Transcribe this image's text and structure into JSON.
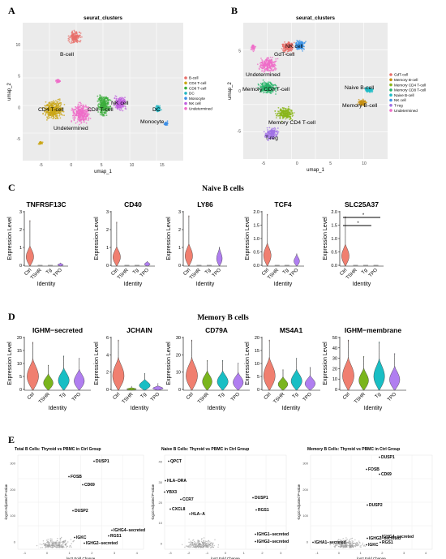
{
  "panels": {
    "a": "A",
    "b": "B",
    "c": "C",
    "d": "D",
    "e": "E"
  },
  "umap_a": {
    "title": "seurat_clusters",
    "xlabel": "umap_1",
    "ylabel": "umap_2",
    "xticks": [
      "-5",
      "0",
      "5",
      "10",
      "15"
    ],
    "yticks": [
      "10",
      "5",
      "0",
      "-5"
    ],
    "legend": [
      {
        "name": "B-cell",
        "color": "#e86f6a"
      },
      {
        "name": "CD4 T-cell",
        "color": "#c9a614"
      },
      {
        "name": "CD8 T-cell",
        "color": "#3cae3c"
      },
      {
        "name": "DC",
        "color": "#22b6c1"
      },
      {
        "name": "Monocyte",
        "color": "#3d8fe6"
      },
      {
        "name": "NK cell",
        "color": "#c060de"
      },
      {
        "name": "Undetermined",
        "color": "#ef6cc8"
      }
    ],
    "labels": [
      "B-cell",
      "CD4 T-cell",
      "CD8 T-cell",
      "NK cell",
      "DC",
      "Monocyte",
      "Undetermined"
    ]
  },
  "umap_b": {
    "title": "seurat_clusters",
    "xlabel": "umap_1",
    "ylabel": "umap_2",
    "xticks": [
      "-5",
      "0",
      "5",
      "10"
    ],
    "yticks": [
      "5",
      "0",
      "-5"
    ],
    "legend": [
      {
        "name": "GdT-cell",
        "color": "#e86f6a"
      },
      {
        "name": "Memory B-cell",
        "color": "#c58f10"
      },
      {
        "name": "Memory CD4 T-cell",
        "color": "#8ab61a"
      },
      {
        "name": "Memory CD8 T-cell",
        "color": "#27b46a"
      },
      {
        "name": "Naive B-cell",
        "color": "#1fbcc7"
      },
      {
        "name": "NK cell",
        "color": "#3d96e8"
      },
      {
        "name": "T-reg",
        "color": "#a070e6"
      },
      {
        "name": "Undetermined",
        "color": "#ef6cc8"
      }
    ],
    "labels": [
      "NK cell",
      "GdT-cell",
      "Undetermined",
      "Memory CD8 T-cell",
      "Naive B-cell",
      "Memory B-cell",
      "Memory CD4 T-cell",
      "T-reg"
    ]
  },
  "panel_c": {
    "title": "Naive B cells",
    "ylabel": "Expression Level",
    "xlabel": "Identity",
    "groups": [
      "Ctrl",
      "TSHR",
      "Tg",
      "TPO"
    ],
    "group_colors": [
      "#f07f70",
      "#7ab51d",
      "#19bec4",
      "#b07ef0"
    ],
    "sig": [
      "*",
      "*"
    ],
    "genes": [
      {
        "name": "TNFRSF13C",
        "yticks": [
          "3",
          "2",
          "1",
          "0"
        ]
      },
      {
        "name": "CD40",
        "yticks": [
          "3",
          "2",
          "1",
          "0"
        ]
      },
      {
        "name": "LY86",
        "yticks": [
          "3",
          "2",
          "1",
          "0"
        ]
      },
      {
        "name": "TCF4",
        "yticks": [
          "2.0",
          "1.5",
          "1.0",
          "0.5",
          "0.0"
        ]
      },
      {
        "name": "SLC25A37",
        "yticks": [
          "2.0",
          "1.5",
          "1.0",
          "0.5",
          "0.0"
        ]
      }
    ]
  },
  "panel_d": {
    "title": "Memory B cells",
    "ylabel": "Expression Level",
    "xlabel": "Identity",
    "groups": [
      "Ctrl",
      "TSHR",
      "Tg",
      "TPO"
    ],
    "group_colors": [
      "#f07f70",
      "#7ab51d",
      "#19bec4",
      "#b07ef0"
    ],
    "genes": [
      {
        "name": "IGHM−secreted",
        "yticks": [
          "20",
          "15",
          "10",
          "5",
          "0"
        ]
      },
      {
        "name": "JCHAIN",
        "yticks": [
          "6",
          "4",
          "2",
          "0"
        ]
      },
      {
        "name": "CD79A",
        "yticks": [
          "30",
          "20",
          "10",
          "0"
        ]
      },
      {
        "name": "MS4A1",
        "yticks": [
          "20",
          "15",
          "10",
          "5",
          "0"
        ]
      },
      {
        "name": "IGHM−membrane",
        "yticks": [
          "50",
          "40",
          "30",
          "20",
          "10",
          "0"
        ]
      }
    ]
  },
  "panel_e": {
    "xlabel": "log2 Fold Change",
    "ylabel": "-log10 Adjusted P-value",
    "plots": [
      {
        "title": "Total B Cells: Thyroid vs PBMC in Ctrl Group",
        "yticks": [
          "300",
          "200",
          "100",
          "0"
        ],
        "xticks": [
          "-1",
          "0",
          "1",
          "2",
          "3",
          "4"
        ],
        "genes": [
          "DUSP1",
          "FOSB",
          "CD69",
          "DUSP2",
          "IGHG4−secreted",
          "RGS1",
          "IGKC",
          "IGHG2−secreted"
        ]
      },
      {
        "title": "Naive B Cells: Thyroid vs PBMC in Ctrl Group",
        "yticks": [
          "40",
          "30",
          "20",
          "10",
          "0"
        ],
        "xticks": [
          "-3",
          "-2",
          "-1",
          "0",
          "1",
          "2",
          "3"
        ],
        "genes": [
          "QPCT",
          "HLA−DRA",
          "YBX3",
          "CCR7",
          "CXCL8",
          "HLA−A",
          "DUSP1",
          "RGS1",
          "IGHG1−secreted",
          "IGHG2−secreted"
        ]
      },
      {
        "title": "Memory B Cells: Thyroid vs PBMC in Ctrl Group",
        "yticks": [
          "300",
          "200",
          "100",
          "0"
        ],
        "xticks": [
          "-1",
          "0",
          "1",
          "2",
          "3",
          "4"
        ],
        "genes": [
          "DUSP1",
          "FOSB",
          "CD69",
          "DUSP2",
          "IGHA1−secreted",
          "IGHG2−secreted",
          "IGKC",
          "IGHG4−secreted",
          "RGS1"
        ]
      }
    ]
  },
  "chart_data": [
    {
      "type": "scatter",
      "title": "seurat_clusters",
      "xlabel": "umap_1",
      "ylabel": "umap_2",
      "xlim": [
        -8,
        16
      ],
      "ylim": [
        -7,
        12
      ],
      "series": [
        {
          "name": "B-cell",
          "centers": [
            [
              -1.5,
              9.0
            ]
          ]
        },
        {
          "name": "CD4 T-cell",
          "centers": [
            [
              -4.0,
              0.2
            ]
          ]
        },
        {
          "name": "CD8 T-cell",
          "centers": [
            [
              4.0,
              1.0
            ]
          ]
        },
        {
          "name": "NK cell",
          "centers": [
            [
              7.0,
              1.2
            ]
          ]
        },
        {
          "name": "DC",
          "centers": [
            [
              12.5,
              0.5
            ]
          ]
        },
        {
          "name": "Monocyte",
          "centers": [
            [
              14.0,
              -1.5
            ]
          ]
        },
        {
          "name": "Undetermined",
          "centers": [
            [
              0.5,
              -1.8
            ]
          ]
        }
      ]
    },
    {
      "type": "scatter",
      "title": "seurat_clusters",
      "xlabel": "umap_1",
      "ylabel": "umap_2",
      "xlim": [
        -6,
        12
      ],
      "ylim": [
        -8,
        9
      ],
      "series": [
        {
          "name": "GdT-cell",
          "centers": [
            [
              1.5,
              6.5
            ]
          ]
        },
        {
          "name": "NK cell",
          "centers": [
            [
              3.5,
              7.0
            ]
          ]
        },
        {
          "name": "Undetermined",
          "centers": [
            [
              -2.0,
              3.0
            ]
          ]
        },
        {
          "name": "Memory CD8 T-cell",
          "centers": [
            [
              -1.5,
              1.0
            ]
          ]
        },
        {
          "name": "Memory CD4 T-cell",
          "centers": [
            [
              1.0,
              -3.0
            ]
          ]
        },
        {
          "name": "T-reg",
          "centers": [
            [
              0.0,
              -5.0
            ]
          ]
        },
        {
          "name": "Naive B-cell",
          "centers": [
            [
              10.0,
              1.5
            ]
          ]
        },
        {
          "name": "Memory B-cell",
          "centers": [
            [
              10.0,
              0.0
            ]
          ]
        }
      ]
    },
    {
      "type": "violin",
      "title": "Naive B cells",
      "categories": [
        "Ctrl",
        "TSHR",
        "Tg",
        "TPO"
      ],
      "series": [
        {
          "name": "TNFRSF13C",
          "max": [
            2.9,
            0,
            0,
            0.2
          ]
        },
        {
          "name": "CD40",
          "max": [
            2.8,
            0,
            0,
            0.3
          ]
        },
        {
          "name": "LY86",
          "max": [
            3.2,
            0,
            0,
            1.2
          ]
        },
        {
          "name": "TCF4",
          "max": [
            2.1,
            0,
            0,
            0.5
          ]
        },
        {
          "name": "SLC25A37",
          "max": [
            2.0,
            0,
            0,
            0
          ]
        }
      ]
    },
    {
      "type": "violin",
      "title": "Memory B cells",
      "categories": [
        "Ctrl",
        "TSHR",
        "Tg",
        "TPO"
      ],
      "series": [
        {
          "name": "IGHM−secreted",
          "max": [
            21,
            11,
            15,
            14
          ]
        },
        {
          "name": "JCHAIN",
          "max": [
            7.5,
            0.6,
            2.5,
            1.0
          ]
        },
        {
          "name": "CD79A",
          "max": [
            37,
            22,
            22,
            20
          ]
        },
        {
          "name": "MS4A1",
          "max": [
            22,
            9,
            14,
            10
          ]
        },
        {
          "name": "IGHM−membrane",
          "max": [
            52,
            35,
            50,
            38
          ]
        }
      ]
    },
    {
      "type": "scatter",
      "title": "Total B Cells: Thyroid vs PBMC in Ctrl Group",
      "xlabel": "log2 Fold Change",
      "ylabel": "-log10 Adjusted P-value",
      "points": [
        {
          "label": "DUSP1",
          "x": 2.3,
          "y": 330
        },
        {
          "label": "FOSB",
          "x": 1.7,
          "y": 230
        },
        {
          "label": "CD69",
          "x": 2.1,
          "y": 205
        },
        {
          "label": "DUSP2",
          "x": 1.7,
          "y": 120
        },
        {
          "label": "IGHG4−secreted",
          "x": 3.4,
          "y": 40
        },
        {
          "label": "RGS1",
          "x": 3.0,
          "y": 25
        },
        {
          "label": "IGKC",
          "x": 1.3,
          "y": 18
        },
        {
          "label": "IGHG2−secreted",
          "x": 1.9,
          "y": 6
        }
      ]
    },
    {
      "type": "scatter",
      "title": "Naive B Cells: Thyroid vs PBMC in Ctrl Group",
      "xlabel": "log2 Fold Change",
      "ylabel": "-log10 Adjusted P-value",
      "points": [
        {
          "label": "QPCT",
          "x": -1.2,
          "y": 48
        },
        {
          "label": "HLA−DRA",
          "x": -2.3,
          "y": 37
        },
        {
          "label": "YBX3",
          "x": -2.2,
          "y": 33
        },
        {
          "label": "CCR7",
          "x": -1.0,
          "y": 28
        },
        {
          "label": "CXCL8",
          "x": -1.4,
          "y": 23
        },
        {
          "label": "HLA−A",
          "x": -0.9,
          "y": 20
        },
        {
          "label": "DUSP1",
          "x": 1.2,
          "y": 28
        },
        {
          "label": "RGS1",
          "x": 1.2,
          "y": 21
        },
        {
          "label": "IGHG1−secreted",
          "x": 1.0,
          "y": 10
        },
        {
          "label": "IGHG2−secreted",
          "x": 1.0,
          "y": 7
        }
      ]
    },
    {
      "type": "scatter",
      "title": "Memory B Cells: Thyroid vs PBMC in Ctrl Group",
      "xlabel": "log2 Fold Change",
      "ylabel": "-log10 Adjusted P-value",
      "points": [
        {
          "label": "DUSP1",
          "x": 2.3,
          "y": 330
        },
        {
          "label": "FOSB",
          "x": 1.7,
          "y": 245
        },
        {
          "label": "CD69",
          "x": 2.1,
          "y": 225
        },
        {
          "label": "DUSP2",
          "x": 1.7,
          "y": 125
        },
        {
          "label": "IGHA1−secreted",
          "x": 0.2,
          "y": 20
        },
        {
          "label": "IGHG2−secreted",
          "x": 1.2,
          "y": 25
        },
        {
          "label": "IGKC",
          "x": 1.2,
          "y": 12
        },
        {
          "label": "IGHG4−secreted",
          "x": 3.2,
          "y": 28
        },
        {
          "label": "RGS1",
          "x": 3.2,
          "y": 15
        }
      ]
    }
  ]
}
